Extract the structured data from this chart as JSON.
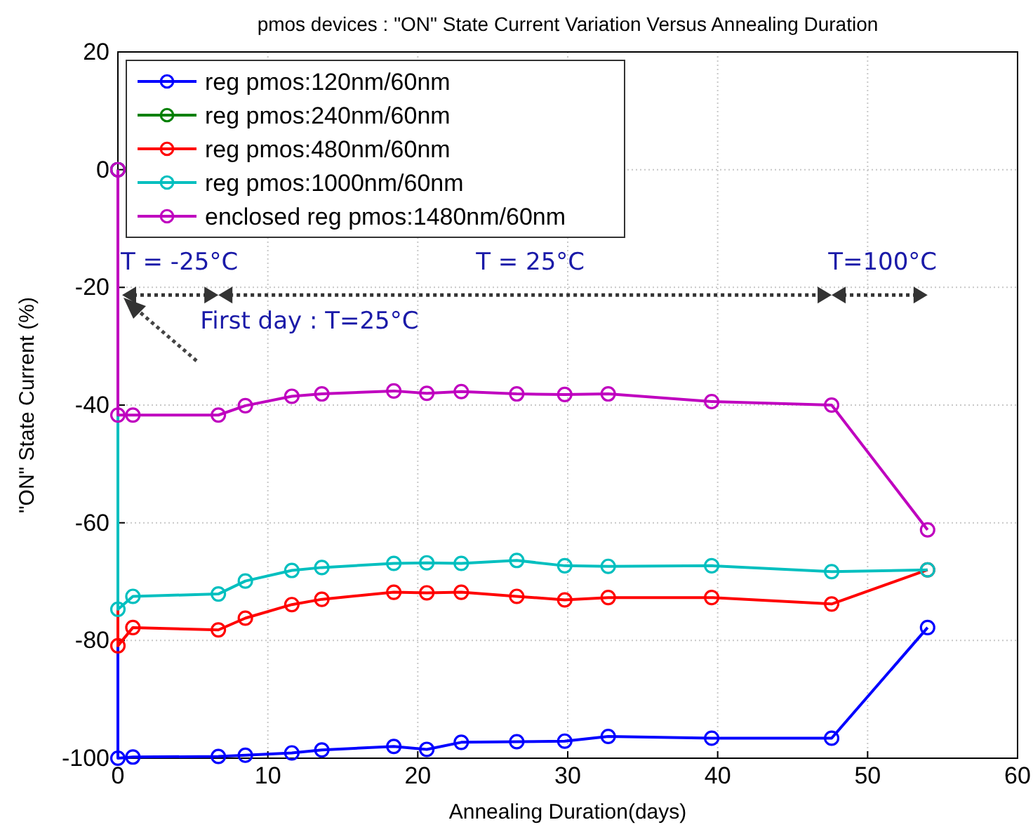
{
  "chart_data": {
    "type": "line",
    "title": "pmos devices : \"ON\" State Current Variation Versus Annealing Duration",
    "xlabel": "Annealing Duration(days)",
    "ylabel": "\"ON\" State Current (%)",
    "x": [
      0,
      0,
      1,
      6.7,
      8.5,
      11.6,
      13.6,
      18.4,
      20.6,
      22.9,
      26.6,
      29.8,
      32.7,
      39.6,
      47.6,
      54
    ],
    "series": [
      {
        "name": "reg pmos:120nm/60nm",
        "color": "#0000ff",
        "values": [
          0,
          -100,
          -99.8,
          -99.7,
          -99.5,
          -99.1,
          -98.6,
          -98.0,
          -98.5,
          -97.3,
          -97.2,
          -97.1,
          -96.3,
          -96.6,
          -96.6,
          -77.8
        ]
      },
      {
        "name": "reg pmos:240nm/60nm",
        "color": "#008000",
        "values": [
          null,
          null,
          null,
          null,
          null,
          null,
          null,
          null,
          null,
          null,
          null,
          null,
          null,
          null,
          null,
          null
        ]
      },
      {
        "name": "reg pmos:480nm/60nm",
        "color": "#ff0000",
        "values": [
          0,
          -80.9,
          -77.8,
          -78.2,
          -76.2,
          -73.9,
          -73.0,
          -71.8,
          -71.9,
          -71.8,
          -72.5,
          -73.1,
          -72.7,
          -72.7,
          -73.8,
          -68.0
        ]
      },
      {
        "name": "reg pmos:1000nm/60nm",
        "color": "#00bfbf",
        "values": [
          0,
          -74.7,
          -72.5,
          -72.1,
          -69.9,
          -68.1,
          -67.6,
          -66.9,
          -66.8,
          -66.9,
          -66.4,
          -67.3,
          -67.4,
          -67.3,
          -68.3,
          -68.0
        ]
      },
      {
        "name": "enclosed reg pmos:1480nm/60nm",
        "color": "#bf00bf",
        "values": [
          0,
          -41.7,
          -41.7,
          -41.7,
          -40.1,
          -38.5,
          -38.1,
          -37.6,
          -38.0,
          -37.7,
          -38.1,
          -38.2,
          -38.1,
          -39.4,
          -40.0,
          -61.2
        ]
      }
    ],
    "xlim": [
      0,
      60
    ],
    "xticks": [
      0,
      10,
      20,
      30,
      40,
      50,
      60
    ],
    "ylim": [
      -100,
      20
    ],
    "yticks": [
      -100,
      -80,
      -60,
      -40,
      -20,
      0,
      20
    ],
    "grid": true,
    "legend": "top left",
    "marker": "circle",
    "line_style": "solid",
    "annotations": [
      "T = -25°C",
      "T = 25°C",
      "T=100°C",
      "First day : T=25°C"
    ]
  }
}
